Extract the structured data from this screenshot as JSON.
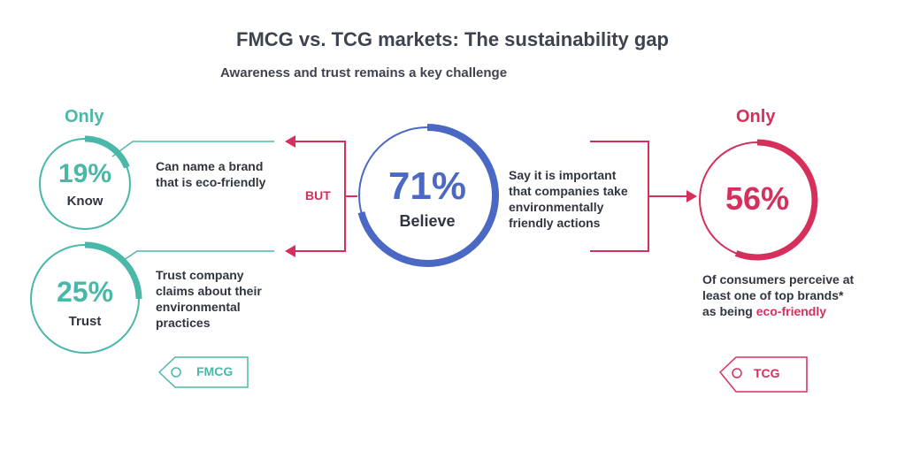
{
  "header": {
    "title": "FMCG vs. TCG markets: The sustainability gap",
    "subtitle": "Awareness and trust remains a key challenge"
  },
  "fmcg": {
    "know": {
      "only_label": "Only",
      "percent": "19%",
      "label": "Know",
      "fraction": 0.19,
      "description_lines": [
        "Can name a brand",
        "that is eco-friendly"
      ]
    },
    "trust": {
      "percent": "25%",
      "label": "Trust",
      "fraction": 0.25,
      "description_lines": [
        "Trust company",
        "claims about their",
        "environmental",
        "practices"
      ]
    },
    "tag": "FMCG"
  },
  "center": {
    "percent": "71%",
    "label": "Believe",
    "fraction": 0.71,
    "but_label": "BUT",
    "description_lines": [
      "Say it is important",
      "that companies take",
      "environmentally",
      "friendly actions"
    ]
  },
  "tcg": {
    "only_label": "Only",
    "percent": "56%",
    "fraction": 0.56,
    "description_lines": [
      "Of consumers perceive at",
      "least one of top brands*",
      "as being "
    ],
    "highlight": "eco-friendly",
    "tag": "TCG"
  },
  "colors": {
    "teal": "#4ab8a8",
    "red": "#d62f5b",
    "blue": "#4a68c4",
    "text": "#2f3640"
  }
}
